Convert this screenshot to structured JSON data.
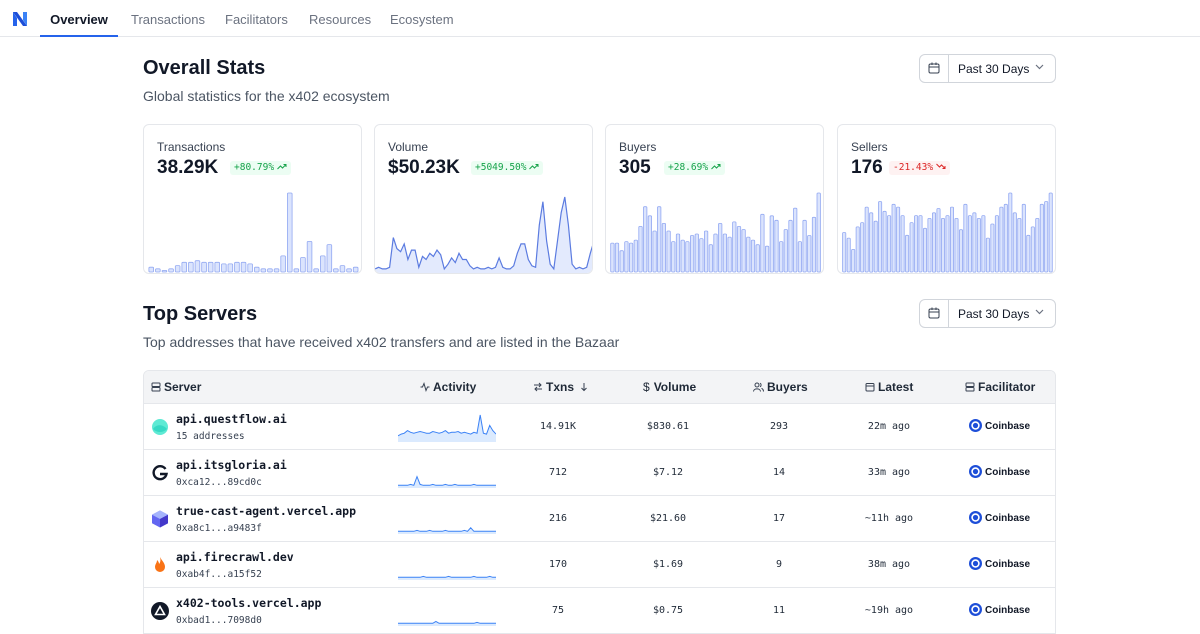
{
  "nav": {
    "tabs": [
      "Overview",
      "Transactions",
      "Facilitators",
      "Resources",
      "Ecosystem"
    ],
    "active_index": 0
  },
  "overall": {
    "title": "Overall Stats",
    "subtitle": "Global statistics for the x402 ecosystem",
    "range": "Past 30 Days"
  },
  "stats": [
    {
      "title": "Transactions",
      "value": "38.29K",
      "delta": "+80.79%",
      "trend": "up",
      "chart": "bar",
      "series": [
        3,
        2,
        1,
        2,
        4,
        6,
        6,
        7,
        6,
        6,
        6,
        5,
        5,
        6,
        6,
        5,
        3,
        2,
        2,
        2,
        10,
        49,
        2,
        9,
        19,
        2,
        10,
        17,
        2,
        4,
        2,
        3
      ]
    },
    {
      "title": "Volume",
      "value": "$50.23K",
      "delta": "+5049.50%",
      "trend": "up",
      "chart": "area",
      "series": [
        2,
        3,
        2,
        2,
        3,
        22,
        15,
        13,
        18,
        8,
        14,
        14,
        3,
        10,
        8,
        12,
        10,
        14,
        11,
        2,
        5,
        9,
        6,
        12,
        8,
        8,
        4,
        2,
        3,
        2,
        2,
        3,
        2,
        3,
        9,
        3,
        2,
        2,
        4,
        12,
        18,
        18,
        8,
        4,
        3,
        30,
        45,
        20,
        5,
        2,
        20,
        38,
        48,
        30,
        5,
        2,
        3,
        2,
        3,
        12,
        20
      ]
    },
    {
      "title": "Buyers",
      "value": "305",
      "delta": "+28.69%",
      "trend": "up",
      "chart": "bar",
      "series": [
        19,
        19,
        14,
        20,
        19,
        21,
        30,
        43,
        37,
        27,
        43,
        32,
        27,
        20,
        25,
        21,
        20,
        24,
        25,
        22,
        27,
        18,
        25,
        32,
        25,
        23,
        33,
        30,
        28,
        23,
        21,
        18,
        38,
        17,
        37,
        34,
        20,
        28,
        34,
        42,
        20,
        34,
        24,
        36,
        52
      ]
    },
    {
      "title": "Sellers",
      "value": "176",
      "delta": "-21.43%",
      "trend": "down",
      "chart": "bar",
      "series": [
        28,
        24,
        16,
        32,
        35,
        46,
        42,
        36,
        50,
        43,
        40,
        48,
        46,
        40,
        26,
        35,
        40,
        40,
        31,
        38,
        42,
        45,
        38,
        40,
        46,
        38,
        30,
        48,
        40,
        42,
        38,
        40,
        24,
        34,
        40,
        46,
        48,
        56,
        42,
        38,
        48,
        26,
        32,
        38,
        48,
        50,
        56
      ]
    }
  ],
  "top_servers": {
    "title": "Top Servers",
    "subtitle": "Top addresses that have received x402 transfers and are listed in the Bazaar",
    "range": "Past 30 Days",
    "columns": [
      "Server",
      "Activity",
      "Txns",
      "Volume",
      "Buyers",
      "Latest",
      "Facilitator"
    ],
    "rows": [
      {
        "name": "api.questflow.ai",
        "address": "15 addresses",
        "txns": "14.91K",
        "volume": "$830.61",
        "buyers": "293",
        "latest": "22m ago",
        "facilitator": "Coinbase",
        "icon": "questflow-logo-icon",
        "activity": [
          6,
          8,
          9,
          12,
          10,
          9,
          10,
          11,
          10,
          9,
          9,
          11,
          10,
          9,
          10,
          12,
          9,
          10,
          10,
          11,
          9,
          10,
          9,
          8,
          10,
          9,
          30,
          9,
          8,
          18,
          12,
          8
        ]
      },
      {
        "name": "api.itsgloria.ai",
        "address": "0xca12...89cd0c",
        "txns": "712",
        "volume": "$7.12",
        "buyers": "14",
        "latest": "33m ago",
        "facilitator": "Coinbase",
        "icon": "gloria-logo-icon",
        "activity": [
          2,
          2,
          2,
          2,
          3,
          2,
          12,
          3,
          2,
          2,
          2,
          3,
          2,
          2,
          2,
          3,
          2,
          2,
          3,
          2,
          2,
          2,
          2,
          2,
          3,
          2,
          2,
          2,
          2,
          2,
          2,
          2
        ]
      },
      {
        "name": "true-cast-agent.vercel.app",
        "address": "0xa8c1...a9483f",
        "txns": "216",
        "volume": "$21.60",
        "buyers": "17",
        "latest": "~11h ago",
        "facilitator": "Coinbase",
        "icon": "cube-logo-icon",
        "activity": [
          2,
          2,
          2,
          2,
          2,
          2,
          3,
          2,
          2,
          2,
          3,
          2,
          2,
          2,
          2,
          3,
          2,
          2,
          2,
          2,
          2,
          3,
          2,
          6,
          2,
          2,
          2,
          2,
          2,
          2,
          2,
          2
        ]
      },
      {
        "name": "api.firecrawl.dev",
        "address": "0xab4f...a15f52",
        "txns": "170",
        "volume": "$1.69",
        "buyers": "9",
        "latest": "38m ago",
        "facilitator": "Coinbase",
        "icon": "flame-logo-icon",
        "activity": [
          2,
          2,
          2,
          2,
          2,
          2,
          2,
          2,
          3,
          2,
          2,
          2,
          2,
          2,
          2,
          2,
          3,
          2,
          2,
          2,
          2,
          2,
          2,
          2,
          3,
          2,
          2,
          2,
          2,
          3,
          2,
          2
        ]
      },
      {
        "name": "x402-tools.vercel.app",
        "address": "0xbad1...7098d0",
        "txns": "75",
        "volume": "$0.75",
        "buyers": "11",
        "latest": "~19h ago",
        "facilitator": "Coinbase",
        "icon": "vercel-triangle-icon",
        "activity": [
          2,
          2,
          2,
          2,
          2,
          2,
          2,
          2,
          2,
          2,
          2,
          2,
          4,
          2,
          2,
          2,
          2,
          2,
          2,
          2,
          2,
          2,
          2,
          2,
          2,
          3,
          2,
          2,
          2,
          2,
          2,
          2
        ]
      }
    ]
  }
}
